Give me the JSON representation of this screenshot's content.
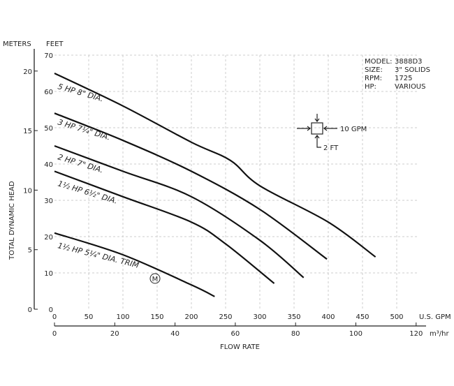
{
  "chart_data": {
    "type": "line",
    "xlabel": "FLOW RATE",
    "ylabel": "TOTAL DYNAMIC HEAD",
    "x_units": "U.S. GPM",
    "x2_units": "m³/hr",
    "y_units_left": "METERS",
    "y_units_right": "FEET",
    "xlim": [
      0,
      530
    ],
    "ylim": [
      0,
      70
    ],
    "x_ticks": [
      "0",
      "50",
      "100",
      "150",
      "200",
      "250",
      "300",
      "350",
      "400",
      "450",
      "500"
    ],
    "x2_ticks": [
      "0",
      "20",
      "40",
      "60",
      "80",
      "100",
      "120"
    ],
    "y_ticks_feet": [
      "0",
      "10",
      "20",
      "30",
      "40",
      "50",
      "60",
      "70"
    ],
    "y_ticks_meters": [
      "0",
      "5",
      "10",
      "15",
      "20"
    ],
    "grid": true,
    "series": [
      {
        "name": "5 HP 8\" DIA.",
        "x": [
          0,
          100,
          200,
          257,
          300,
          400,
          469
        ],
        "y": [
          65,
          56,
          46,
          41,
          34,
          24,
          14.4
        ]
      },
      {
        "name": "3 HP 7¼\" DIA.",
        "x": [
          0,
          100,
          200,
          300,
          398
        ],
        "y": [
          54,
          46.5,
          38,
          27.5,
          13.8
        ]
      },
      {
        "name": "2 HP 7\" DIA.",
        "x": [
          0,
          100,
          200,
          300,
          364
        ],
        "y": [
          45,
          38,
          31,
          19,
          8.7
        ]
      },
      {
        "name": "1½ HP 6½\" DIA.",
        "x": [
          0,
          100,
          200,
          250,
          321
        ],
        "y": [
          38,
          31,
          24,
          18,
          7.1
        ]
      },
      {
        "name": "1½ HP 5¼\" DIA. TRIM",
        "x": [
          0,
          100,
          200,
          234
        ],
        "y": [
          21,
          15,
          6.7,
          3.5
        ]
      }
    ],
    "trim_badge": "M",
    "info": [
      {
        "label": "MODEL:",
        "value": "3888D3"
      },
      {
        "label": "SIZE:",
        "value": "3\" SOLIDS"
      },
      {
        "label": "RPM:",
        "value": "1725"
      },
      {
        "label": "HP:",
        "value": "VARIOUS"
      }
    ],
    "scale_key": {
      "horizontal": "10 GPM",
      "vertical": "2 FT"
    }
  }
}
